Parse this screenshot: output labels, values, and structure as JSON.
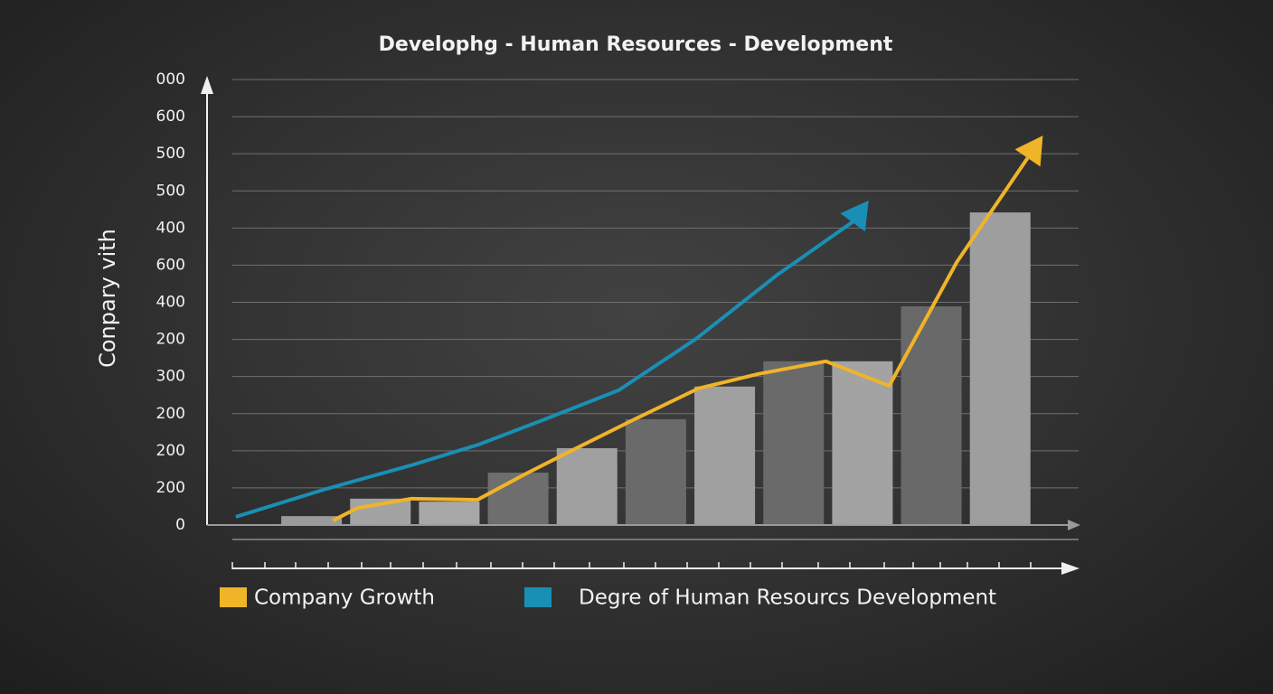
{
  "chart_data": {
    "type": "bar",
    "title": "Develophg - Human Resources - Development",
    "y_label": "Conpary vith",
    "ylim": [
      0,
      12
    ],
    "yticks": [
      0,
      1,
      2,
      3,
      4,
      5,
      6,
      7,
      8,
      9,
      10,
      11,
      12
    ],
    "ytick_labels": [
      "0",
      "200",
      "200",
      "200",
      "300",
      "200",
      "400",
      "600",
      "400",
      "500",
      "500",
      "600",
      "000"
    ],
    "xlim": [
      -1.15,
      11.1
    ],
    "categories": [
      null,
      null,
      null,
      null,
      null,
      null,
      null,
      null,
      null,
      null,
      null
    ],
    "values": [
      0.24,
      0.71,
      0.63,
      1.41,
      2.07,
      2.85,
      3.73,
      4.41,
      4.41,
      5.89,
      8.42
    ],
    "bar_colors": [
      "#9a9a9a",
      "#a3a3a3",
      "#a8a8a8",
      "#6e6e6e",
      "#a0a0a0",
      "#6a6a6a",
      "#a0a0a0",
      "#6a6a6a",
      "#a3a3a3",
      "#696969",
      "#9e9e9e"
    ],
    "grid": true,
    "series": [
      {
        "name": "Company Growth",
        "color": "#f0b429",
        "x": [
          0.31,
          0.67,
          1.45,
          2.41,
          3.09,
          3.74,
          4.66,
          5.62,
          6.49,
          7.47,
          8.39,
          9.37,
          10.62
        ],
        "values": [
          0.12,
          0.46,
          0.71,
          0.68,
          1.36,
          1.97,
          2.82,
          3.68,
          4.07,
          4.41,
          3.75,
          7.08,
          10.49
        ]
      },
      {
        "name": "Degre of Human Resourcs Development",
        "color": "#1a8fb5",
        "x": [
          -1.1,
          0.21,
          1.45,
          2.43,
          3.35,
          4.46,
          5.58,
          6.75,
          7.87,
          8.09
        ],
        "values": [
          0.22,
          0.97,
          1.61,
          2.17,
          2.82,
          3.63,
          5.01,
          6.72,
          8.18,
          8.74
        ]
      }
    ]
  }
}
